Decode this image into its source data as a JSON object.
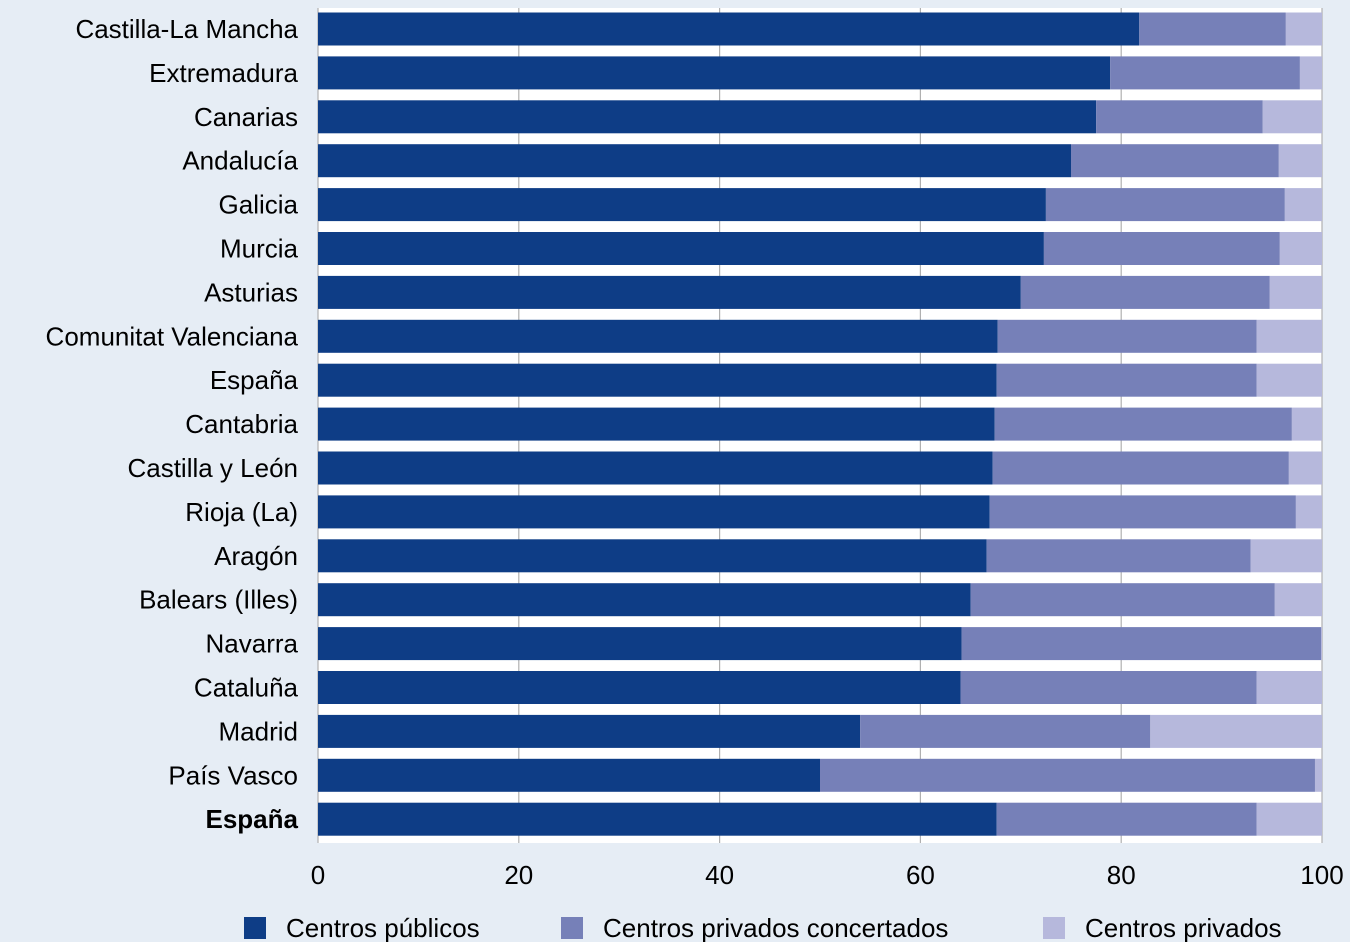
{
  "chart_data": {
    "type": "bar",
    "orientation": "horizontal",
    "stacked": true,
    "categories": [
      "Castilla-La Mancha",
      "Extremadura",
      "Canarias",
      "Andalucía",
      "Galicia",
      "Murcia",
      "Asturias",
      "Comunitat Valenciana",
      "España",
      "Cantabria",
      "Castilla y León",
      "Rioja (La)",
      "Aragón",
      "Balears (Illes)",
      "Navarra",
      "Cataluña",
      "Madrid",
      "País Vasco",
      "España"
    ],
    "bold_categories": [
      18
    ],
    "series": [
      {
        "name": "Centros públicos",
        "color": "#0e3d86",
        "values": [
          81.8,
          78.9,
          77.5,
          75.0,
          72.5,
          72.3,
          70.0,
          67.7,
          67.6,
          67.4,
          67.2,
          66.9,
          66.6,
          65.0,
          64.1,
          64.0,
          54.0,
          50.0,
          67.6
        ]
      },
      {
        "name": "Centros privados concertados",
        "color": "#7680b8",
        "values": [
          14.6,
          18.9,
          16.6,
          20.7,
          23.8,
          23.5,
          24.8,
          25.8,
          25.9,
          29.6,
          29.5,
          30.5,
          26.3,
          30.3,
          35.8,
          29.5,
          28.9,
          49.3,
          25.9
        ]
      },
      {
        "name": "Centros privados",
        "color": "#b6b8dc",
        "values": [
          3.6,
          2.2,
          5.9,
          4.3,
          3.7,
          4.2,
          5.2,
          6.5,
          6.5,
          3.0,
          3.3,
          2.6,
          7.1,
          4.7,
          0.1,
          6.5,
          17.1,
          0.7,
          6.5
        ]
      }
    ],
    "xlim": [
      0,
      100
    ],
    "xticks": [
      "0",
      "20",
      "40",
      "60",
      "80",
      "100"
    ],
    "legend_position": "bottom",
    "grid": "vertical"
  }
}
